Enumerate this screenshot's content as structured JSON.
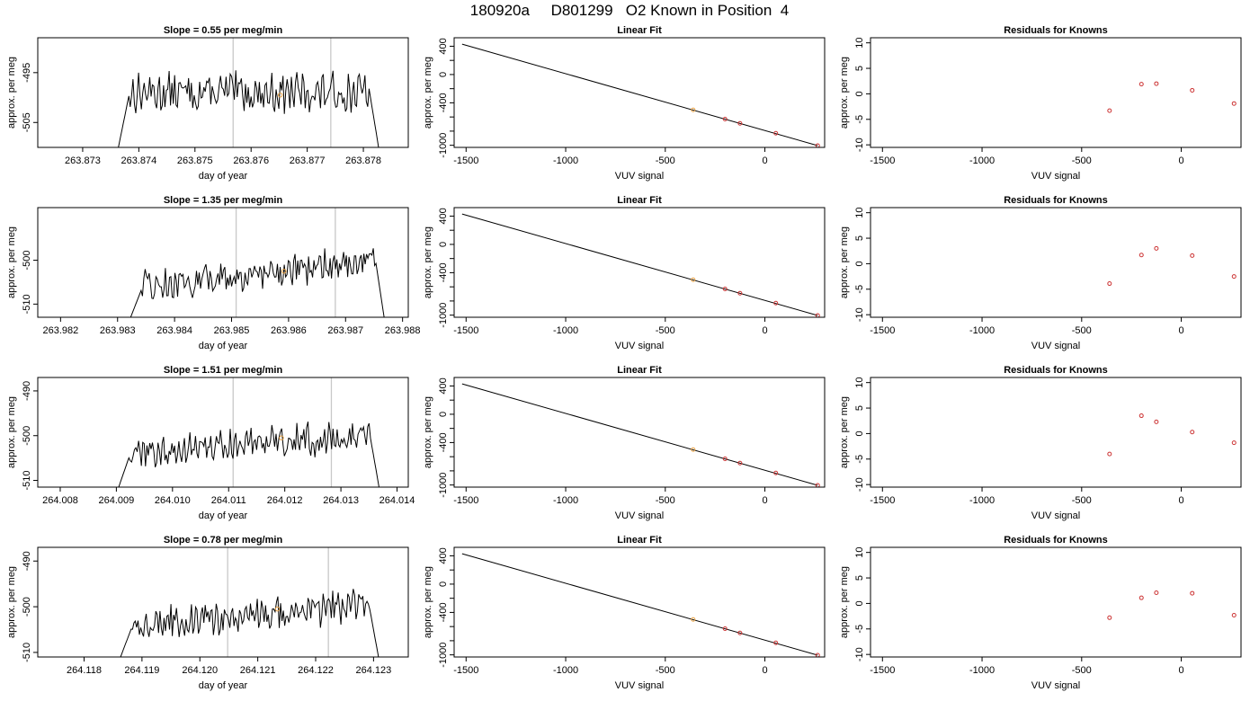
{
  "page_title": "180920a     D801299   O2 Known in Position  4",
  "colors": {
    "trace": "#000000",
    "marker": "#e8a040",
    "residual": "#cc3333",
    "vline": "#c8c8c8",
    "fitline": "#000000"
  },
  "chart_data": [
    {
      "row": 0,
      "type": "line",
      "title": "Slope =  0.55  per meg/min",
      "xlabel": "day of year",
      "ylabel": "approx. per meg",
      "xlim": [
        263.8722,
        263.8788
      ],
      "ylim": [
        -510,
        -488
      ],
      "xticks": [
        "263.873",
        "263.874",
        "263.875",
        "263.876",
        "263.877",
        "263.878"
      ],
      "xtick_values": [
        263.873,
        263.874,
        263.875,
        263.876,
        263.877,
        263.878
      ],
      "yticks": [
        "-495",
        "-505"
      ],
      "ytick_values": [
        -495,
        -505
      ],
      "vlines": [
        263.87568,
        263.87742
      ],
      "trace": {
        "x_start": 263.8736,
        "x_end": 263.8783,
        "base": -499,
        "spread": 3.2,
        "rise": 0,
        "dip_start": -512,
        "dip_end": -512
      },
      "marker": {
        "x": 263.87652,
        "y": -499.5
      }
    },
    {
      "row": 0,
      "type": "line",
      "title": "Linear Fit",
      "xlabel": "VUV signal",
      "ylabel": "approx. per meg",
      "xlim": [
        -1560,
        300
      ],
      "ylim": [
        -1030,
        520
      ],
      "xticks": [
        "-1500",
        "-1000",
        "-500",
        "0"
      ],
      "xtick_values": [
        -1500,
        -1000,
        -500,
        0
      ],
      "yticks": [
        "400",
        "0",
        "-400",
        "-1000"
      ],
      "ytick_values": [
        400,
        0,
        -400,
        -1000
      ],
      "fit_line": {
        "x": [
          -1520,
          265
        ],
        "y": [
          430,
          -1005
        ]
      },
      "points": {
        "x": [
          -360,
          -200,
          -125,
          55,
          265
        ],
        "y": [
          -500,
          -630,
          -690,
          -830,
          -1005
        ]
      },
      "highlight_index": 0
    },
    {
      "row": 0,
      "type": "scatter",
      "title": "Residuals for Knowns",
      "xlabel": "VUV signal",
      "ylabel": "approx. per meg",
      "xlim": [
        -1560,
        300
      ],
      "ylim": [
        -10.5,
        11
      ],
      "xticks": [
        "-1500",
        "-1000",
        "-500",
        "0"
      ],
      "xtick_values": [
        -1500,
        -1000,
        -500,
        0
      ],
      "yticks": [
        "10",
        "5",
        "0",
        "-5",
        "-10"
      ],
      "ytick_values": [
        10,
        5,
        0,
        -5,
        -10
      ],
      "points": {
        "x": [
          -360,
          -200,
          -125,
          55,
          265
        ],
        "y": [
          -3.3,
          1.9,
          2.0,
          0.7,
          -1.9
        ]
      }
    },
    {
      "row": 1,
      "type": "line",
      "title": "Slope =  1.35  per meg/min",
      "xlabel": "day of year",
      "ylabel": "approx. per meg",
      "xlim": [
        263.9816,
        263.9881
      ],
      "ylim": [
        -513,
        -488
      ],
      "xticks": [
        "263.982",
        "263.983",
        "263.984",
        "263.985",
        "263.986",
        "263.987",
        "263.988"
      ],
      "xtick_values": [
        263.982,
        263.983,
        263.984,
        263.985,
        263.986,
        263.987,
        263.988
      ],
      "yticks": [
        "-500",
        "-510"
      ],
      "ytick_values": [
        -500,
        -510
      ],
      "vlines": [
        263.98508,
        263.98682
      ],
      "trace": {
        "x_start": 263.9832,
        "x_end": 263.9877,
        "base": -503,
        "spread": 3.0,
        "rise": 7,
        "dip_start": -514,
        "dip_end": -515
      },
      "marker": {
        "x": 263.98592,
        "y": -502.5
      }
    },
    {
      "row": 1,
      "type": "line",
      "title": "Linear Fit",
      "xlabel": "VUV signal",
      "ylabel": "approx. per meg",
      "xlim": [
        -1560,
        300
      ],
      "ylim": [
        -1030,
        520
      ],
      "xticks": [
        "-1500",
        "-1000",
        "-500",
        "0"
      ],
      "xtick_values": [
        -1500,
        -1000,
        -500,
        0
      ],
      "yticks": [
        "400",
        "0",
        "-400",
        "-1000"
      ],
      "ytick_values": [
        400,
        0,
        -400,
        -1000
      ],
      "fit_line": {
        "x": [
          -1520,
          265
        ],
        "y": [
          430,
          -1005
        ]
      },
      "points": {
        "x": [
          -360,
          -200,
          -125,
          55,
          265
        ],
        "y": [
          -500,
          -630,
          -690,
          -830,
          -1005
        ]
      },
      "highlight_index": 0
    },
    {
      "row": 1,
      "type": "scatter",
      "title": "Residuals for Knowns",
      "xlabel": "VUV signal",
      "ylabel": "approx. per meg",
      "xlim": [
        -1560,
        300
      ],
      "ylim": [
        -10.5,
        11
      ],
      "xticks": [
        "-1500",
        "-1000",
        "-500",
        "0"
      ],
      "xtick_values": [
        -1500,
        -1000,
        -500,
        0
      ],
      "yticks": [
        "10",
        "5",
        "0",
        "-5",
        "-10"
      ],
      "ytick_values": [
        10,
        5,
        0,
        -5,
        -10
      ],
      "points": {
        "x": [
          -360,
          -200,
          -125,
          55,
          265
        ],
        "y": [
          -3.9,
          1.7,
          3.0,
          1.6,
          -2.5
        ]
      }
    },
    {
      "row": 2,
      "type": "line",
      "title": "Slope =  1.51  per meg/min",
      "xlabel": "day of year",
      "ylabel": "approx. per meg",
      "xlim": [
        264.0076,
        264.0142
      ],
      "ylim": [
        -511.5,
        -487
      ],
      "xticks": [
        "264.008",
        "264.009",
        "264.010",
        "264.011",
        "264.012",
        "264.013",
        "264.014"
      ],
      "xtick_values": [
        264.008,
        264.009,
        264.01,
        264.011,
        264.012,
        264.013,
        264.014
      ],
      "yticks": [
        "-490",
        "-500",
        "-510"
      ],
      "ytick_values": [
        -490,
        -500,
        -510
      ],
      "vlines": [
        264.01108,
        264.01283
      ],
      "trace": {
        "x_start": 264.009,
        "x_end": 264.0137,
        "base": -502,
        "spread": 3.0,
        "rise": 5,
        "dip_start": -513,
        "dip_end": -513
      },
      "marker": {
        "x": 264.01194,
        "y": -500.5
      }
    },
    {
      "row": 2,
      "type": "line",
      "title": "Linear Fit",
      "xlabel": "VUV signal",
      "ylabel": "approx. per meg",
      "xlim": [
        -1560,
        300
      ],
      "ylim": [
        -1030,
        520
      ],
      "xticks": [
        "-1500",
        "-1000",
        "-500",
        "0"
      ],
      "xtick_values": [
        -1500,
        -1000,
        -500,
        0
      ],
      "yticks": [
        "400",
        "0",
        "-400",
        "-1000"
      ],
      "ytick_values": [
        400,
        0,
        -400,
        -1000
      ],
      "fit_line": {
        "x": [
          -1520,
          265
        ],
        "y": [
          430,
          -1005
        ]
      },
      "points": {
        "x": [
          -360,
          -200,
          -125,
          55,
          265
        ],
        "y": [
          -500,
          -630,
          -690,
          -830,
          -1005
        ]
      },
      "highlight_index": 0
    },
    {
      "row": 2,
      "type": "scatter",
      "title": "Residuals for Knowns",
      "xlabel": "VUV signal",
      "ylabel": "approx. per meg",
      "xlim": [
        -1560,
        300
      ],
      "ylim": [
        -10.5,
        11
      ],
      "xticks": [
        "-1500",
        "-1000",
        "-500",
        "0"
      ],
      "xtick_values": [
        -1500,
        -1000,
        -500,
        0
      ],
      "yticks": [
        "10",
        "5",
        "0",
        "-5",
        "-10"
      ],
      "ytick_values": [
        10,
        5,
        0,
        -5,
        -10
      ],
      "points": {
        "x": [
          -360,
          -200,
          -125,
          55,
          265
        ],
        "y": [
          -4.0,
          3.5,
          2.3,
          0.3,
          -1.8
        ]
      }
    },
    {
      "row": 3,
      "type": "line",
      "title": "Slope =  0.78  per meg/min",
      "xlabel": "day of year",
      "ylabel": "approx. per meg",
      "xlim": [
        264.1172,
        264.1236
      ],
      "ylim": [
        -511,
        -487
      ],
      "xticks": [
        "264.118",
        "264.119",
        "264.120",
        "264.121",
        "264.122",
        "264.123"
      ],
      "xtick_values": [
        264.118,
        264.119,
        264.12,
        264.121,
        264.122,
        264.123
      ],
      "yticks": [
        "-490",
        "-500",
        "-510"
      ],
      "ytick_values": [
        -490,
        -500,
        -510
      ],
      "vlines": [
        264.12048,
        264.12222
      ],
      "trace": {
        "x_start": 264.1186,
        "x_end": 264.1231,
        "base": -502,
        "spread": 3.0,
        "rise": 5,
        "dip_start": -512,
        "dip_end": -512
      },
      "marker": {
        "x": 264.12134,
        "y": -500.5
      }
    },
    {
      "row": 3,
      "type": "line",
      "title": "Linear Fit",
      "xlabel": "VUV signal",
      "ylabel": "approx. per meg",
      "xlim": [
        -1560,
        300
      ],
      "ylim": [
        -1030,
        520
      ],
      "xticks": [
        "-1500",
        "-1000",
        "-500",
        "0"
      ],
      "xtick_values": [
        -1500,
        -1000,
        -500,
        0
      ],
      "yticks": [
        "400",
        "0",
        "-400",
        "-1000"
      ],
      "ytick_values": [
        400,
        0,
        -400,
        -1000
      ],
      "fit_line": {
        "x": [
          -1520,
          265
        ],
        "y": [
          430,
          -1005
        ]
      },
      "points": {
        "x": [
          -360,
          -200,
          -125,
          55,
          265
        ],
        "y": [
          -500,
          -630,
          -690,
          -830,
          -1005
        ]
      },
      "highlight_index": 0
    },
    {
      "row": 3,
      "type": "scatter",
      "title": "Residuals for Knowns",
      "xlabel": "VUV signal",
      "ylabel": "approx. per meg",
      "xlim": [
        -1560,
        300
      ],
      "ylim": [
        -10.5,
        11
      ],
      "xticks": [
        "-1500",
        "-1000",
        "-500",
        "0"
      ],
      "xtick_values": [
        -1500,
        -1000,
        -500,
        0
      ],
      "yticks": [
        "10",
        "5",
        "0",
        "-5",
        "-10"
      ],
      "ytick_values": [
        10,
        5,
        0,
        -5,
        -10
      ],
      "points": {
        "x": [
          -360,
          -200,
          -125,
          55,
          265
        ],
        "y": [
          -2.8,
          1.1,
          2.1,
          2.0,
          -2.3
        ]
      }
    }
  ]
}
